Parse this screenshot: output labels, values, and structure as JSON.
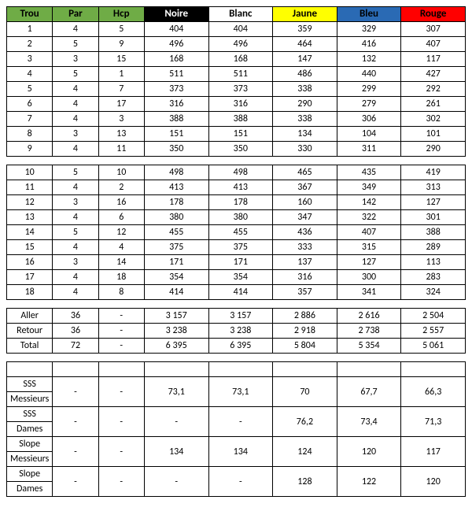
{
  "colors": {
    "green": "#6fac46",
    "black": "#000000",
    "white": "#ffffff",
    "yellow": "#ffff00",
    "blue": "#2a6ab4",
    "red": "#ff0000",
    "text_white": "#ffffff",
    "text_black": "#000000"
  },
  "headers": [
    "Trou",
    "Par",
    "Hcp",
    "Noire",
    "Blanc",
    "Jaune",
    "Bleu",
    "Rouge"
  ],
  "header_bg": [
    "green",
    "green",
    "green",
    "black",
    "white",
    "yellow",
    "blue",
    "red"
  ],
  "header_color": [
    "text_black",
    "text_black",
    "text_black",
    "text_white",
    "text_black",
    "text_black",
    "text_black",
    "text_black"
  ],
  "front": [
    [
      "1",
      "4",
      "5",
      "404",
      "404",
      "359",
      "329",
      "307"
    ],
    [
      "2",
      "5",
      "9",
      "496",
      "496",
      "464",
      "416",
      "407"
    ],
    [
      "3",
      "3",
      "15",
      "168",
      "168",
      "147",
      "132",
      "117"
    ],
    [
      "4",
      "5",
      "1",
      "511",
      "511",
      "486",
      "440",
      "427"
    ],
    [
      "5",
      "4",
      "7",
      "373",
      "373",
      "338",
      "299",
      "292"
    ],
    [
      "6",
      "4",
      "17",
      "316",
      "316",
      "290",
      "279",
      "261"
    ],
    [
      "7",
      "4",
      "3",
      "388",
      "388",
      "338",
      "306",
      "302"
    ],
    [
      "8",
      "3",
      "13",
      "151",
      "151",
      "134",
      "104",
      "101"
    ],
    [
      "9",
      "4",
      "11",
      "350",
      "350",
      "330",
      "311",
      "290"
    ]
  ],
  "back": [
    [
      "10",
      "5",
      "10",
      "498",
      "498",
      "465",
      "435",
      "419"
    ],
    [
      "11",
      "4",
      "2",
      "413",
      "413",
      "367",
      "349",
      "313"
    ],
    [
      "12",
      "3",
      "16",
      "178",
      "178",
      "160",
      "142",
      "127"
    ],
    [
      "13",
      "4",
      "6",
      "380",
      "380",
      "347",
      "322",
      "301"
    ],
    [
      "14",
      "5",
      "12",
      "455",
      "455",
      "436",
      "407",
      "388"
    ],
    [
      "15",
      "4",
      "4",
      "375",
      "375",
      "333",
      "315",
      "289"
    ],
    [
      "16",
      "3",
      "14",
      "171",
      "171",
      "137",
      "127",
      "113"
    ],
    [
      "17",
      "4",
      "18",
      "354",
      "354",
      "316",
      "300",
      "283"
    ],
    [
      "18",
      "4",
      "8",
      "414",
      "414",
      "357",
      "341",
      "324"
    ]
  ],
  "totals": [
    [
      "Aller",
      "36",
      "-",
      "3 157",
      "3 157",
      "2 886",
      "2 616",
      "2 504"
    ],
    [
      "Retour",
      "36",
      "-",
      "3 238",
      "3 238",
      "2 918",
      "2 738",
      "2 557"
    ],
    [
      "Total",
      "72",
      "-",
      "6 395",
      "6 395",
      "5 804",
      "5 354",
      "5 061"
    ]
  ],
  "rating_labels": [
    [
      "SSS",
      "Messieurs"
    ],
    [
      "SSS",
      "Dames"
    ],
    [
      "Slope",
      "Messieurs"
    ],
    [
      "Slope",
      "Dames"
    ]
  ],
  "rating_pairs_hcp": [
    "-",
    "-",
    "-",
    "-"
  ],
  "rating_par": [
    "-",
    "-",
    "-",
    "-"
  ],
  "ratings": [
    [
      "73,1",
      "73,1",
      "70",
      "67,7",
      "66,3"
    ],
    [
      "-",
      "-",
      "76,2",
      "73,4",
      "71,3"
    ],
    [
      "134",
      "134",
      "124",
      "120",
      "117"
    ],
    [
      "-",
      "-",
      "128",
      "122",
      "120"
    ]
  ]
}
